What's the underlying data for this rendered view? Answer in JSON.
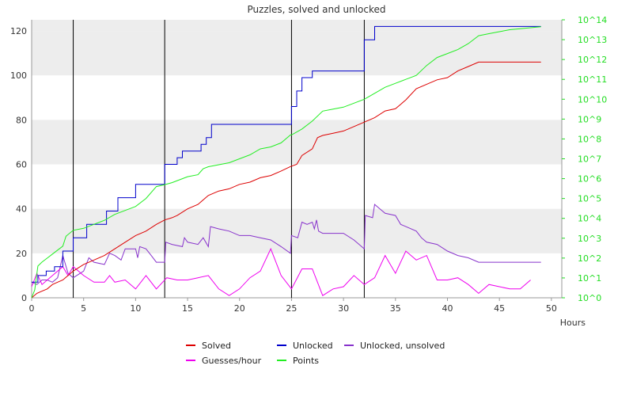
{
  "chart_data": {
    "type": "line",
    "title": "Puzzles, solved and unlocked",
    "xlabel": "Hours",
    "ylabel": "",
    "xlim": [
      0,
      51
    ],
    "ylim": [
      0,
      125
    ],
    "y2lim": [
      0,
      14
    ],
    "y2_scale": "log10",
    "x_ticks": [
      0,
      5,
      10,
      15,
      20,
      25,
      30,
      35,
      40,
      45,
      50
    ],
    "y_ticks": [
      0,
      20,
      40,
      60,
      80,
      100,
      120
    ],
    "y2_ticks": [
      "10^0",
      "10^1",
      "10^2",
      "10^3",
      "10^4",
      "10^5",
      "10^6",
      "10^7",
      "10^8",
      "10^9",
      "10^10",
      "10^11",
      "10^12",
      "10^13",
      "10^14"
    ],
    "grid": "alternating horizontal bands",
    "vertical_markers": [
      4,
      12.8,
      25,
      32
    ],
    "legend_position": "bottom",
    "series": [
      {
        "name": "Solved",
        "color": "#dd0000",
        "axis": "left",
        "step": false,
        "points": [
          [
            0,
            0
          ],
          [
            0.5,
            2
          ],
          [
            1,
            3
          ],
          [
            1.5,
            4
          ],
          [
            2,
            6
          ],
          [
            2.5,
            7
          ],
          [
            3,
            8
          ],
          [
            3.5,
            10
          ],
          [
            4,
            12
          ],
          [
            5,
            15
          ],
          [
            6,
            17
          ],
          [
            7,
            19
          ],
          [
            8,
            22
          ],
          [
            9,
            25
          ],
          [
            10,
            28
          ],
          [
            11,
            30
          ],
          [
            12,
            33
          ],
          [
            12.8,
            35
          ],
          [
            13.5,
            36
          ],
          [
            14,
            37
          ],
          [
            15,
            40
          ],
          [
            16,
            42
          ],
          [
            17,
            46
          ],
          [
            18,
            48
          ],
          [
            19,
            49
          ],
          [
            20,
            51
          ],
          [
            21,
            52
          ],
          [
            22,
            54
          ],
          [
            23,
            55
          ],
          [
            24,
            57
          ],
          [
            24.9,
            59
          ],
          [
            25.5,
            60
          ],
          [
            26,
            64
          ],
          [
            27,
            67
          ],
          [
            27.5,
            72
          ],
          [
            28,
            73
          ],
          [
            29,
            74
          ],
          [
            30,
            75
          ],
          [
            31,
            77
          ],
          [
            32,
            79
          ],
          [
            33,
            81
          ],
          [
            34,
            84
          ],
          [
            35,
            85
          ],
          [
            35.5,
            87
          ],
          [
            36,
            89
          ],
          [
            37,
            94
          ],
          [
            38,
            96
          ],
          [
            39,
            98
          ],
          [
            40,
            99
          ],
          [
            41,
            102
          ],
          [
            42,
            104
          ],
          [
            43,
            106
          ],
          [
            49,
            106
          ]
        ]
      },
      {
        "name": "Unlocked",
        "color": "#0000cc",
        "axis": "left",
        "step": true,
        "points": [
          [
            0,
            7
          ],
          [
            0.6,
            7
          ],
          [
            0.6,
            10
          ],
          [
            1.4,
            10
          ],
          [
            1.4,
            12
          ],
          [
            2.2,
            12
          ],
          [
            2.2,
            14
          ],
          [
            3,
            14
          ],
          [
            3,
            21
          ],
          [
            4,
            21
          ],
          [
            4,
            27
          ],
          [
            5.3,
            27
          ],
          [
            5.3,
            33
          ],
          [
            7.2,
            33
          ],
          [
            7.2,
            39
          ],
          [
            8.3,
            39
          ],
          [
            8.3,
            45
          ],
          [
            10,
            45
          ],
          [
            10,
            51
          ],
          [
            12.8,
            51
          ],
          [
            12.8,
            60
          ],
          [
            14,
            60
          ],
          [
            14,
            63
          ],
          [
            14.5,
            63
          ],
          [
            14.5,
            66
          ],
          [
            16.3,
            66
          ],
          [
            16.3,
            69
          ],
          [
            16.8,
            69
          ],
          [
            16.8,
            72
          ],
          [
            17.3,
            72
          ],
          [
            17.3,
            78
          ],
          [
            25,
            78
          ],
          [
            25,
            86
          ],
          [
            25.5,
            86
          ],
          [
            25.5,
            93
          ],
          [
            26,
            93
          ],
          [
            26,
            99
          ],
          [
            27,
            99
          ],
          [
            27,
            102
          ],
          [
            32,
            102
          ],
          [
            32,
            116
          ],
          [
            33,
            116
          ],
          [
            33,
            122
          ],
          [
            49,
            122
          ]
        ]
      },
      {
        "name": "Unlocked, unsolved",
        "color": "#8833cc",
        "axis": "left",
        "step": false,
        "points": [
          [
            0,
            7
          ],
          [
            0.5,
            6
          ],
          [
            1,
            8
          ],
          [
            1.5,
            8
          ],
          [
            2,
            7
          ],
          [
            2.5,
            9
          ],
          [
            3,
            19
          ],
          [
            3.5,
            11
          ],
          [
            4,
            9
          ],
          [
            5,
            12
          ],
          [
            5.5,
            18
          ],
          [
            6,
            16
          ],
          [
            7,
            15
          ],
          [
            7.5,
            20
          ],
          [
            8,
            19
          ],
          [
            8.6,
            17
          ],
          [
            9,
            22
          ],
          [
            10,
            22
          ],
          [
            10.2,
            18
          ],
          [
            10.4,
            23
          ],
          [
            11,
            22
          ],
          [
            11.5,
            19
          ],
          [
            12,
            16
          ],
          [
            12.8,
            16
          ],
          [
            12.9,
            25
          ],
          [
            13.5,
            24
          ],
          [
            14.5,
            23
          ],
          [
            14.7,
            27
          ],
          [
            15,
            25
          ],
          [
            16,
            24
          ],
          [
            16.5,
            27
          ],
          [
            17,
            23
          ],
          [
            17.2,
            32
          ],
          [
            18,
            31
          ],
          [
            19,
            30
          ],
          [
            20,
            28
          ],
          [
            21,
            28
          ],
          [
            22,
            27
          ],
          [
            23,
            26
          ],
          [
            24,
            23
          ],
          [
            24.9,
            20
          ],
          [
            25,
            28
          ],
          [
            25.6,
            27
          ],
          [
            26,
            34
          ],
          [
            26.5,
            33
          ],
          [
            27,
            34
          ],
          [
            27.2,
            31
          ],
          [
            27.4,
            35
          ],
          [
            27.6,
            30
          ],
          [
            28,
            29
          ],
          [
            30,
            29
          ],
          [
            31,
            26
          ],
          [
            32,
            22
          ],
          [
            32.1,
            37
          ],
          [
            32.8,
            36
          ],
          [
            33,
            42
          ],
          [
            33.5,
            40
          ],
          [
            34,
            38
          ],
          [
            35,
            37
          ],
          [
            35.5,
            33
          ],
          [
            36,
            32
          ],
          [
            37,
            30
          ],
          [
            37.5,
            27
          ],
          [
            38,
            25
          ],
          [
            39,
            24
          ],
          [
            40,
            21
          ],
          [
            41,
            19
          ],
          [
            42,
            18
          ],
          [
            43,
            16
          ],
          [
            49,
            16
          ]
        ]
      },
      {
        "name": "Guesses/hour",
        "color": "#ee00ee",
        "axis": "left",
        "step": false,
        "points": [
          [
            0,
            5
          ],
          [
            0.5,
            11
          ],
          [
            1,
            6
          ],
          [
            2,
            10
          ],
          [
            3,
            14
          ],
          [
            3.5,
            10
          ],
          [
            4,
            14
          ],
          [
            5,
            10
          ],
          [
            6,
            7
          ],
          [
            7,
            7
          ],
          [
            7.5,
            10
          ],
          [
            8,
            7
          ],
          [
            9,
            8
          ],
          [
            10,
            4
          ],
          [
            11,
            10
          ],
          [
            12,
            4
          ],
          [
            13,
            9
          ],
          [
            14,
            8
          ],
          [
            15,
            8
          ],
          [
            16,
            9
          ],
          [
            17,
            10
          ],
          [
            18,
            4
          ],
          [
            19,
            1
          ],
          [
            20,
            4
          ],
          [
            21,
            9
          ],
          [
            22,
            12
          ],
          [
            23,
            22
          ],
          [
            24,
            10
          ],
          [
            25,
            4
          ],
          [
            26,
            13
          ],
          [
            27,
            13
          ],
          [
            28,
            1
          ],
          [
            29,
            4
          ],
          [
            30,
            5
          ],
          [
            31,
            10
          ],
          [
            32,
            6
          ],
          [
            33,
            9
          ],
          [
            34,
            19
          ],
          [
            35,
            11
          ],
          [
            36,
            21
          ],
          [
            37,
            17
          ],
          [
            38,
            19
          ],
          [
            39,
            8
          ],
          [
            40,
            8
          ],
          [
            41,
            9
          ],
          [
            42,
            6
          ],
          [
            43,
            2
          ],
          [
            44,
            6
          ],
          [
            45,
            5
          ],
          [
            46,
            4
          ],
          [
            47,
            4
          ],
          [
            48,
            8
          ]
        ]
      },
      {
        "name": "Points",
        "color": "#22ee22",
        "axis": "right",
        "step": false,
        "points": [
          [
            0,
            0
          ],
          [
            0.3,
            0.4
          ],
          [
            0.6,
            1.6
          ],
          [
            1,
            1.8
          ],
          [
            1.5,
            2
          ],
          [
            2,
            2.2
          ],
          [
            2.5,
            2.4
          ],
          [
            3,
            2.6
          ],
          [
            3.3,
            3.1
          ],
          [
            4,
            3.4
          ],
          [
            5,
            3.5
          ],
          [
            6,
            3.7
          ],
          [
            7,
            3.9
          ],
          [
            8,
            4.2
          ],
          [
            9,
            4.4
          ],
          [
            10,
            4.6
          ],
          [
            11,
            5
          ],
          [
            12,
            5.6
          ],
          [
            12.8,
            5.7
          ],
          [
            13.5,
            5.8
          ],
          [
            14,
            5.9
          ],
          [
            15,
            6.1
          ],
          [
            16,
            6.2
          ],
          [
            16.5,
            6.5
          ],
          [
            17,
            6.6
          ],
          [
            18,
            6.7
          ],
          [
            19,
            6.8
          ],
          [
            20,
            7
          ],
          [
            21,
            7.2
          ],
          [
            22,
            7.5
          ],
          [
            23,
            7.6
          ],
          [
            24,
            7.8
          ],
          [
            24.9,
            8.2
          ],
          [
            25,
            8.2
          ],
          [
            26,
            8.5
          ],
          [
            27,
            8.9
          ],
          [
            28,
            9.4
          ],
          [
            29,
            9.5
          ],
          [
            30,
            9.6
          ],
          [
            31,
            9.8
          ],
          [
            32,
            10
          ],
          [
            33,
            10.3
          ],
          [
            34,
            10.6
          ],
          [
            35,
            10.8
          ],
          [
            36,
            11
          ],
          [
            37,
            11.2
          ],
          [
            38,
            11.7
          ],
          [
            39,
            12.1
          ],
          [
            40,
            12.3
          ],
          [
            41,
            12.5
          ],
          [
            42,
            12.8
          ],
          [
            43,
            13.2
          ],
          [
            44,
            13.3
          ],
          [
            45,
            13.4
          ],
          [
            46,
            13.5
          ],
          [
            47,
            13.55
          ],
          [
            48,
            13.6
          ],
          [
            49,
            13.65
          ]
        ]
      }
    ]
  }
}
